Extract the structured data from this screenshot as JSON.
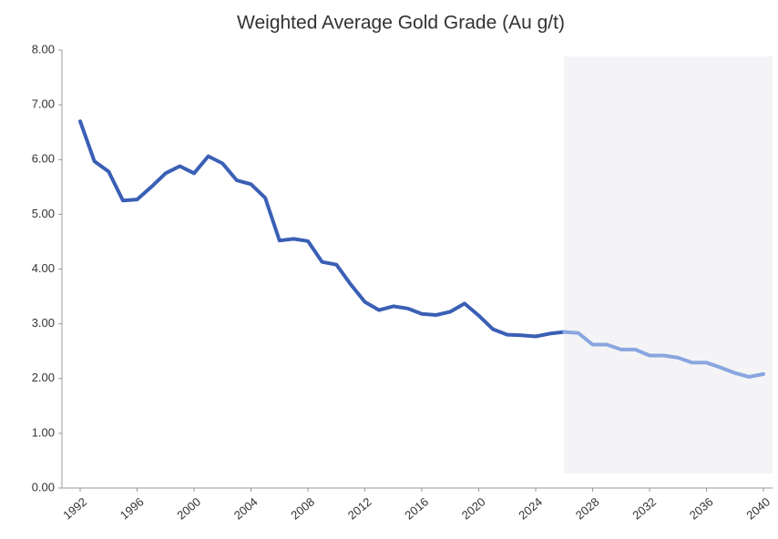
{
  "chart_data": {
    "type": "line",
    "title": "Weighted Average Gold Grade (Au g/t)",
    "x": [
      1992,
      1993,
      1994,
      1995,
      1996,
      1997,
      1998,
      1999,
      2000,
      2001,
      2002,
      2003,
      2004,
      2005,
      2006,
      2007,
      2008,
      2009,
      2010,
      2011,
      2012,
      2013,
      2014,
      2015,
      2016,
      2017,
      2018,
      2019,
      2020,
      2021,
      2022,
      2023,
      2024,
      2025,
      2026,
      2027,
      2028,
      2029,
      2030,
      2031,
      2032,
      2033,
      2034,
      2035,
      2036,
      2037,
      2038,
      2039,
      2040
    ],
    "series": [
      {
        "color": "#3a5fb5",
        "values": [
          6.7,
          5.97,
          5.78,
          5.25,
          5.27,
          5.5,
          5.75,
          5.88,
          5.75,
          6.06,
          5.93,
          5.62,
          5.55,
          5.3,
          4.52,
          4.55,
          4.51,
          4.13,
          4.08,
          3.72,
          3.4,
          3.25,
          3.32,
          3.28,
          3.18,
          3.16,
          3.22,
          3.37,
          3.15,
          2.9,
          2.8,
          2.79,
          2.77,
          2.82,
          2.85,
          null,
          null,
          null,
          null,
          null,
          null,
          null,
          null,
          null,
          null,
          null,
          null,
          null,
          null
        ]
      },
      {
        "color": "#8aa6e0",
        "values": [
          null,
          null,
          null,
          null,
          null,
          null,
          null,
          null,
          null,
          null,
          null,
          null,
          null,
          null,
          null,
          null,
          null,
          null,
          null,
          null,
          null,
          null,
          null,
          null,
          null,
          null,
          null,
          null,
          null,
          null,
          null,
          null,
          null,
          null,
          2.85,
          2.83,
          2.62,
          2.62,
          2.53,
          2.53,
          2.42,
          2.42,
          2.38,
          2.29,
          2.29,
          2.2,
          2.1,
          2.03,
          2.08
        ]
      }
    ],
    "xlim": [
      1992,
      2040
    ],
    "xticks": [
      1992,
      1996,
      2000,
      2004,
      2008,
      2012,
      2016,
      2020,
      2024,
      2028,
      2032,
      2036,
      2040
    ],
    "ylim": [
      0,
      8
    ],
    "yticks": [
      {
        "value": 0,
        "label": "0.00"
      },
      {
        "value": 1,
        "label": "1.00"
      },
      {
        "value": 2,
        "label": "2.00"
      },
      {
        "value": 3,
        "label": "3.00"
      },
      {
        "value": 4,
        "label": "4.00"
      },
      {
        "value": 5,
        "label": "5.00"
      },
      {
        "value": 6,
        "label": "6.00"
      },
      {
        "value": 7,
        "label": "7.00"
      },
      {
        "value": 8,
        "label": "8.00"
      }
    ],
    "grid": false,
    "shade_forecast": true
  }
}
